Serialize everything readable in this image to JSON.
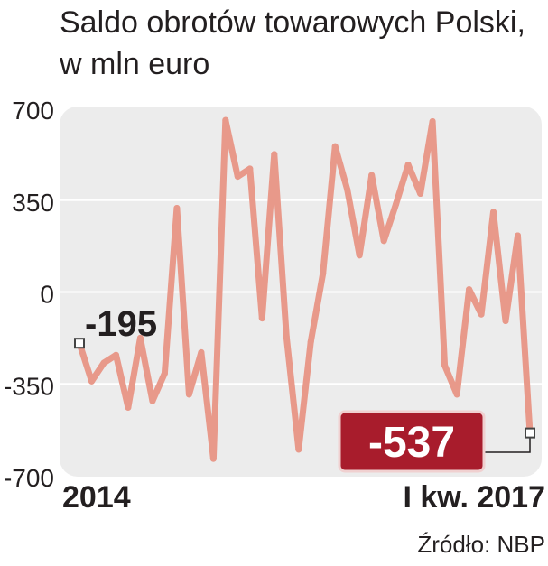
{
  "chart_data": {
    "type": "line",
    "title": "Saldo obrotów towarowych Polski,",
    "subtitle": "w mln euro",
    "source": "Źródło: NBP",
    "xlabel": "",
    "ylabel": "",
    "x_start_label": "2014",
    "x_end_label": "I kw. 2017",
    "ylim": [
      -700,
      700
    ],
    "yticks": [
      700,
      350,
      0,
      -350,
      -700
    ],
    "grid": true,
    "legend": "none",
    "series": [
      {
        "values": [
          -195,
          -340,
          -270,
          -240,
          -440,
          -175,
          -415,
          -310,
          320,
          -390,
          -230,
          -635,
          655,
          440,
          470,
          -100,
          525,
          -170,
          -600,
          -190,
          70,
          555,
          390,
          140,
          445,
          195,
          335,
          485,
          375,
          650,
          -280,
          -390,
          10,
          -85,
          305,
          -110,
          215,
          -537
        ]
      }
    ],
    "annotations": {
      "first_label": "-195",
      "last_label": "-537"
    },
    "colors": {
      "line": "#e8998a",
      "plot_bg": "#ececec",
      "grid": "#ffffff",
      "badge_bg": "#a81c2c",
      "badge_border": "#f0d0d0",
      "text": "#231f20",
      "marker": "#444444"
    }
  }
}
